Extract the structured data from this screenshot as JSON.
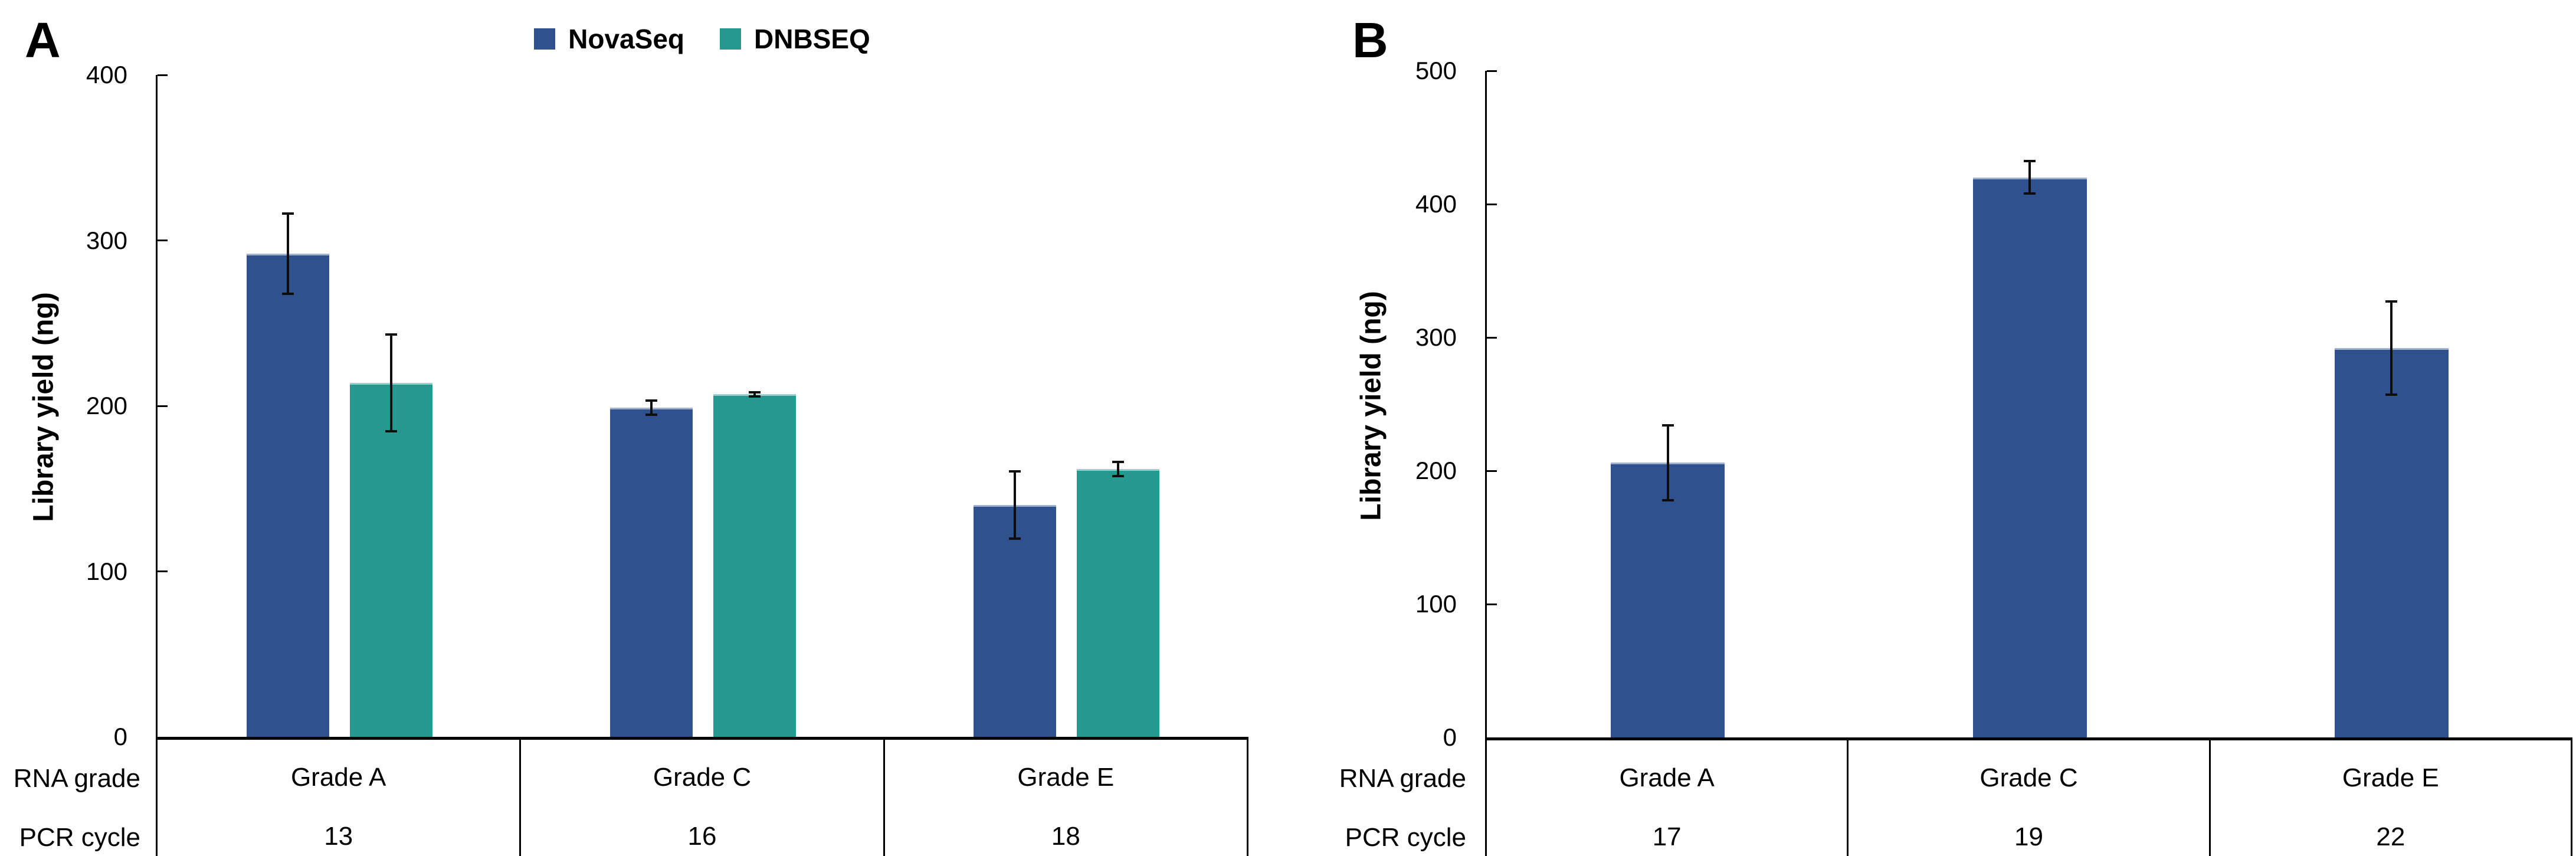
{
  "chart_data": [
    {
      "type": "bar",
      "panel": "A",
      "ylabel": "Library yield (ng)",
      "ylim": [
        0,
        400
      ],
      "ytick_step": 100,
      "yticks": [
        0,
        100,
        200,
        300,
        400
      ],
      "grid": false,
      "legend_position": "top-center",
      "categories": [
        "Grade A",
        "Grade C",
        "Grade E"
      ],
      "row_labels": [
        "RNA grade",
        "PCR cycle"
      ],
      "pcr_cycles": [
        "13",
        "16",
        "18"
      ],
      "series": [
        {
          "name": "NovaSeq",
          "color": "#2F528F",
          "values": [
            292,
            199,
            140
          ],
          "errors": [
            25,
            5,
            21
          ]
        },
        {
          "name": "DNBSEQ",
          "color": "#259890",
          "values": [
            214,
            207,
            162
          ],
          "errors": [
            30,
            2,
            5
          ]
        }
      ]
    },
    {
      "type": "bar",
      "panel": "B",
      "ylabel": "Library yield (ng)",
      "ylim": [
        0,
        500
      ],
      "ytick_step": 100,
      "yticks": [
        0,
        100,
        200,
        300,
        400,
        500
      ],
      "grid": false,
      "legend_position": "none",
      "categories": [
        "Grade A",
        "Grade C",
        "Grade E"
      ],
      "row_labels": [
        "RNA grade",
        "PCR cycle"
      ],
      "pcr_cycles": [
        "17",
        "19",
        "22"
      ],
      "series": [
        {
          "name": "NovaSeq",
          "color": "#2F528F",
          "values": [
            206,
            420,
            292
          ],
          "errors": [
            29,
            13,
            36
          ]
        }
      ]
    }
  ],
  "style": {
    "bar_highlight": "rgba(255,255,255,0.55)",
    "error_bar_color": "#0d0d0d",
    "axis_color": "#000000"
  }
}
